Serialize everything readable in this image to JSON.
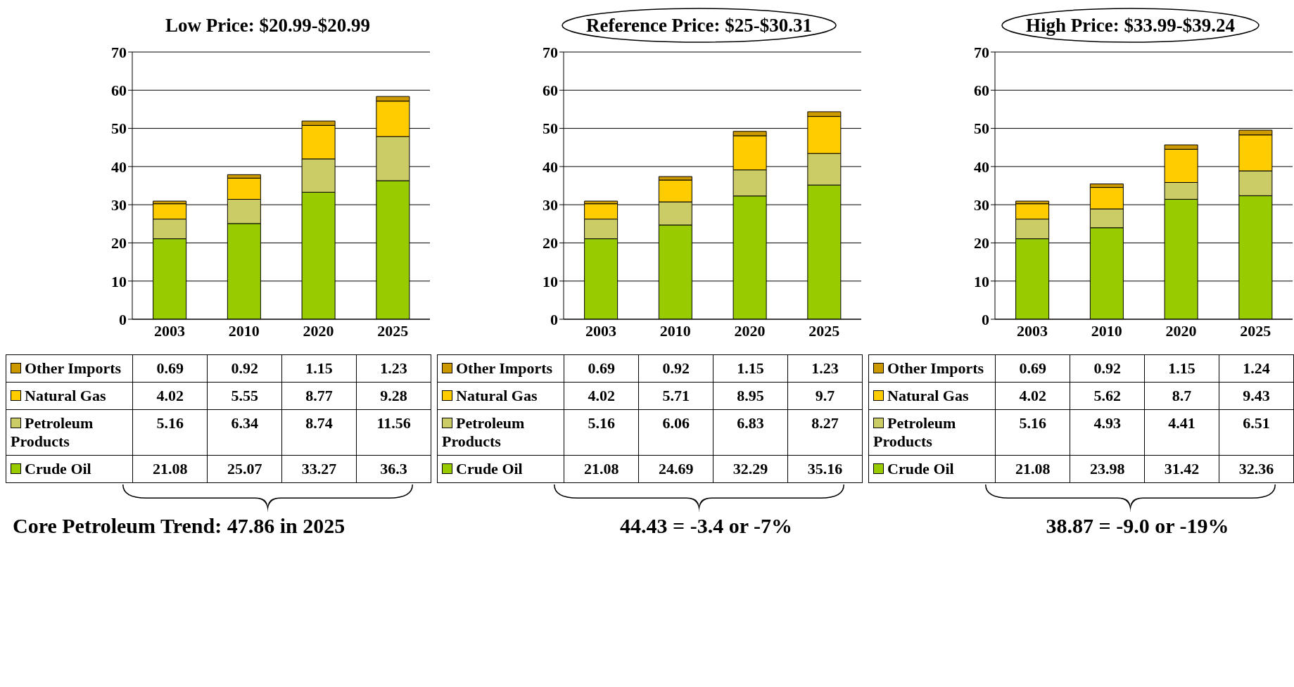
{
  "chart_data": [
    {
      "type": "bar",
      "stacked": true,
      "title": "Low Price: $20.99-$20.99",
      "categories": [
        "2003",
        "2010",
        "2020",
        "2025"
      ],
      "series": [
        {
          "name": "Crude Oil",
          "color": "#99cc00",
          "values": [
            21.08,
            25.07,
            33.27,
            36.3
          ]
        },
        {
          "name": "Petroleum Products",
          "color": "#cccc66",
          "values": [
            5.16,
            6.34,
            8.74,
            11.56
          ]
        },
        {
          "name": "Natural Gas",
          "color": "#ffcc00",
          "values": [
            4.02,
            5.55,
            8.77,
            9.28
          ]
        },
        {
          "name": "Other Imports",
          "color": "#cc9900",
          "values": [
            0.69,
            0.92,
            1.15,
            1.23
          ]
        }
      ],
      "ylim": [
        0,
        70
      ],
      "yticks": [
        0,
        10,
        20,
        30,
        40,
        50,
        60,
        70
      ],
      "grid": "y",
      "legend": "bottom",
      "data_labels": true,
      "annotations": [
        "Core Petroleum Trend: 47.86 in 2025"
      ]
    },
    {
      "type": "bar",
      "stacked": true,
      "title": "Reference Price: $25-$30.31",
      "categories": [
        "2003",
        "2010",
        "2020",
        "2025"
      ],
      "series": [
        {
          "name": "Crude Oil",
          "color": "#99cc00",
          "values": [
            21.08,
            24.69,
            32.29,
            35.16
          ]
        },
        {
          "name": "Petroleum Products",
          "color": "#cccc66",
          "values": [
            5.16,
            6.06,
            6.83,
            8.27
          ]
        },
        {
          "name": "Natural Gas",
          "color": "#ffcc00",
          "values": [
            4.02,
            5.71,
            8.95,
            9.7
          ]
        },
        {
          "name": "Other Imports",
          "color": "#cc9900",
          "values": [
            0.69,
            0.92,
            1.15,
            1.23
          ]
        }
      ],
      "ylim": [
        0,
        70
      ],
      "yticks": [
        0,
        10,
        20,
        30,
        40,
        50,
        60,
        70
      ],
      "grid": "y",
      "legend": "bottom",
      "data_labels": true,
      "annotations": [
        "44.43 = -3.4 or -7%"
      ]
    },
    {
      "type": "bar",
      "stacked": true,
      "title": "High Price: $33.99-$39.24",
      "categories": [
        "2003",
        "2010",
        "2020",
        "2025"
      ],
      "series": [
        {
          "name": "Crude Oil",
          "color": "#99cc00",
          "values": [
            21.08,
            23.98,
            31.42,
            32.36
          ]
        },
        {
          "name": "Petroleum Products",
          "color": "#cccc66",
          "values": [
            5.16,
            4.93,
            4.41,
            6.51
          ]
        },
        {
          "name": "Natural Gas",
          "color": "#ffcc00",
          "values": [
            4.02,
            5.62,
            8.7,
            9.43
          ]
        },
        {
          "name": "Other Imports",
          "color": "#cc9900",
          "values": [
            0.69,
            0.92,
            1.15,
            1.24
          ]
        }
      ],
      "ylim": [
        0,
        70
      ],
      "yticks": [
        0,
        10,
        20,
        30,
        40,
        50,
        60,
        70
      ],
      "grid": "y",
      "legend": "bottom",
      "data_labels": true,
      "annotations": [
        "38.87 = -9.0 or -19%"
      ]
    }
  ]
}
